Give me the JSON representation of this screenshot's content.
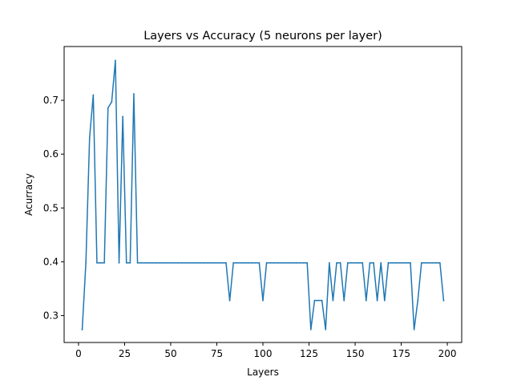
{
  "chart_data": {
    "type": "line",
    "title": "Layers vs Accuracy (5 neurons per layer)",
    "xlabel": "Layers",
    "ylabel": "Acurracy",
    "xlim": [
      -7.8,
      207.8
    ],
    "ylim": [
      0.25,
      0.8
    ],
    "xticks": [
      0,
      25,
      50,
      75,
      100,
      125,
      150,
      175,
      200
    ],
    "yticks": [
      0.3,
      0.4,
      0.5,
      0.6,
      0.7
    ],
    "ytick_labels": [
      "0.3",
      "0.4",
      "0.5",
      "0.6",
      "0.7"
    ],
    "grid": false,
    "colors": {
      "line": "#1f77b4",
      "axes": "#000000",
      "background": "#ffffff"
    },
    "series": [
      {
        "x": [
          2,
          4,
          6,
          8,
          10,
          12,
          14,
          16,
          18,
          20,
          22,
          24,
          26,
          28,
          30,
          32,
          34,
          36,
          38,
          40,
          42,
          44,
          46,
          48,
          50,
          52,
          54,
          56,
          58,
          60,
          62,
          64,
          66,
          68,
          70,
          72,
          74,
          76,
          78,
          80,
          82,
          84,
          86,
          88,
          90,
          92,
          94,
          96,
          98,
          100,
          102,
          104,
          106,
          108,
          110,
          112,
          114,
          116,
          118,
          120,
          122,
          124,
          126,
          128,
          130,
          132,
          134,
          136,
          138,
          140,
          142,
          144,
          146,
          148,
          150,
          152,
          154,
          156,
          158,
          160,
          162,
          164,
          166,
          168,
          170,
          172,
          174,
          176,
          178,
          180,
          182,
          184,
          186,
          188,
          190,
          192,
          194,
          196,
          198
        ],
        "values": [
          0.274,
          0.398,
          0.63,
          0.71,
          0.398,
          0.398,
          0.398,
          0.686,
          0.697,
          0.774,
          0.398,
          0.67,
          0.398,
          0.398,
          0.712,
          0.398,
          0.398,
          0.398,
          0.398,
          0.398,
          0.398,
          0.398,
          0.398,
          0.398,
          0.398,
          0.398,
          0.398,
          0.398,
          0.398,
          0.398,
          0.398,
          0.398,
          0.398,
          0.398,
          0.398,
          0.398,
          0.398,
          0.398,
          0.398,
          0.398,
          0.328,
          0.398,
          0.398,
          0.398,
          0.398,
          0.398,
          0.398,
          0.398,
          0.398,
          0.328,
          0.398,
          0.398,
          0.398,
          0.398,
          0.398,
          0.398,
          0.398,
          0.398,
          0.398,
          0.398,
          0.398,
          0.398,
          0.274,
          0.328,
          0.328,
          0.328,
          0.274,
          0.398,
          0.328,
          0.398,
          0.398,
          0.328,
          0.398,
          0.398,
          0.398,
          0.398,
          0.398,
          0.328,
          0.398,
          0.398,
          0.328,
          0.398,
          0.328,
          0.398,
          0.398,
          0.398,
          0.398,
          0.398,
          0.398,
          0.398,
          0.274,
          0.328,
          0.398,
          0.398,
          0.398,
          0.398,
          0.398,
          0.398,
          0.328
        ]
      }
    ]
  }
}
